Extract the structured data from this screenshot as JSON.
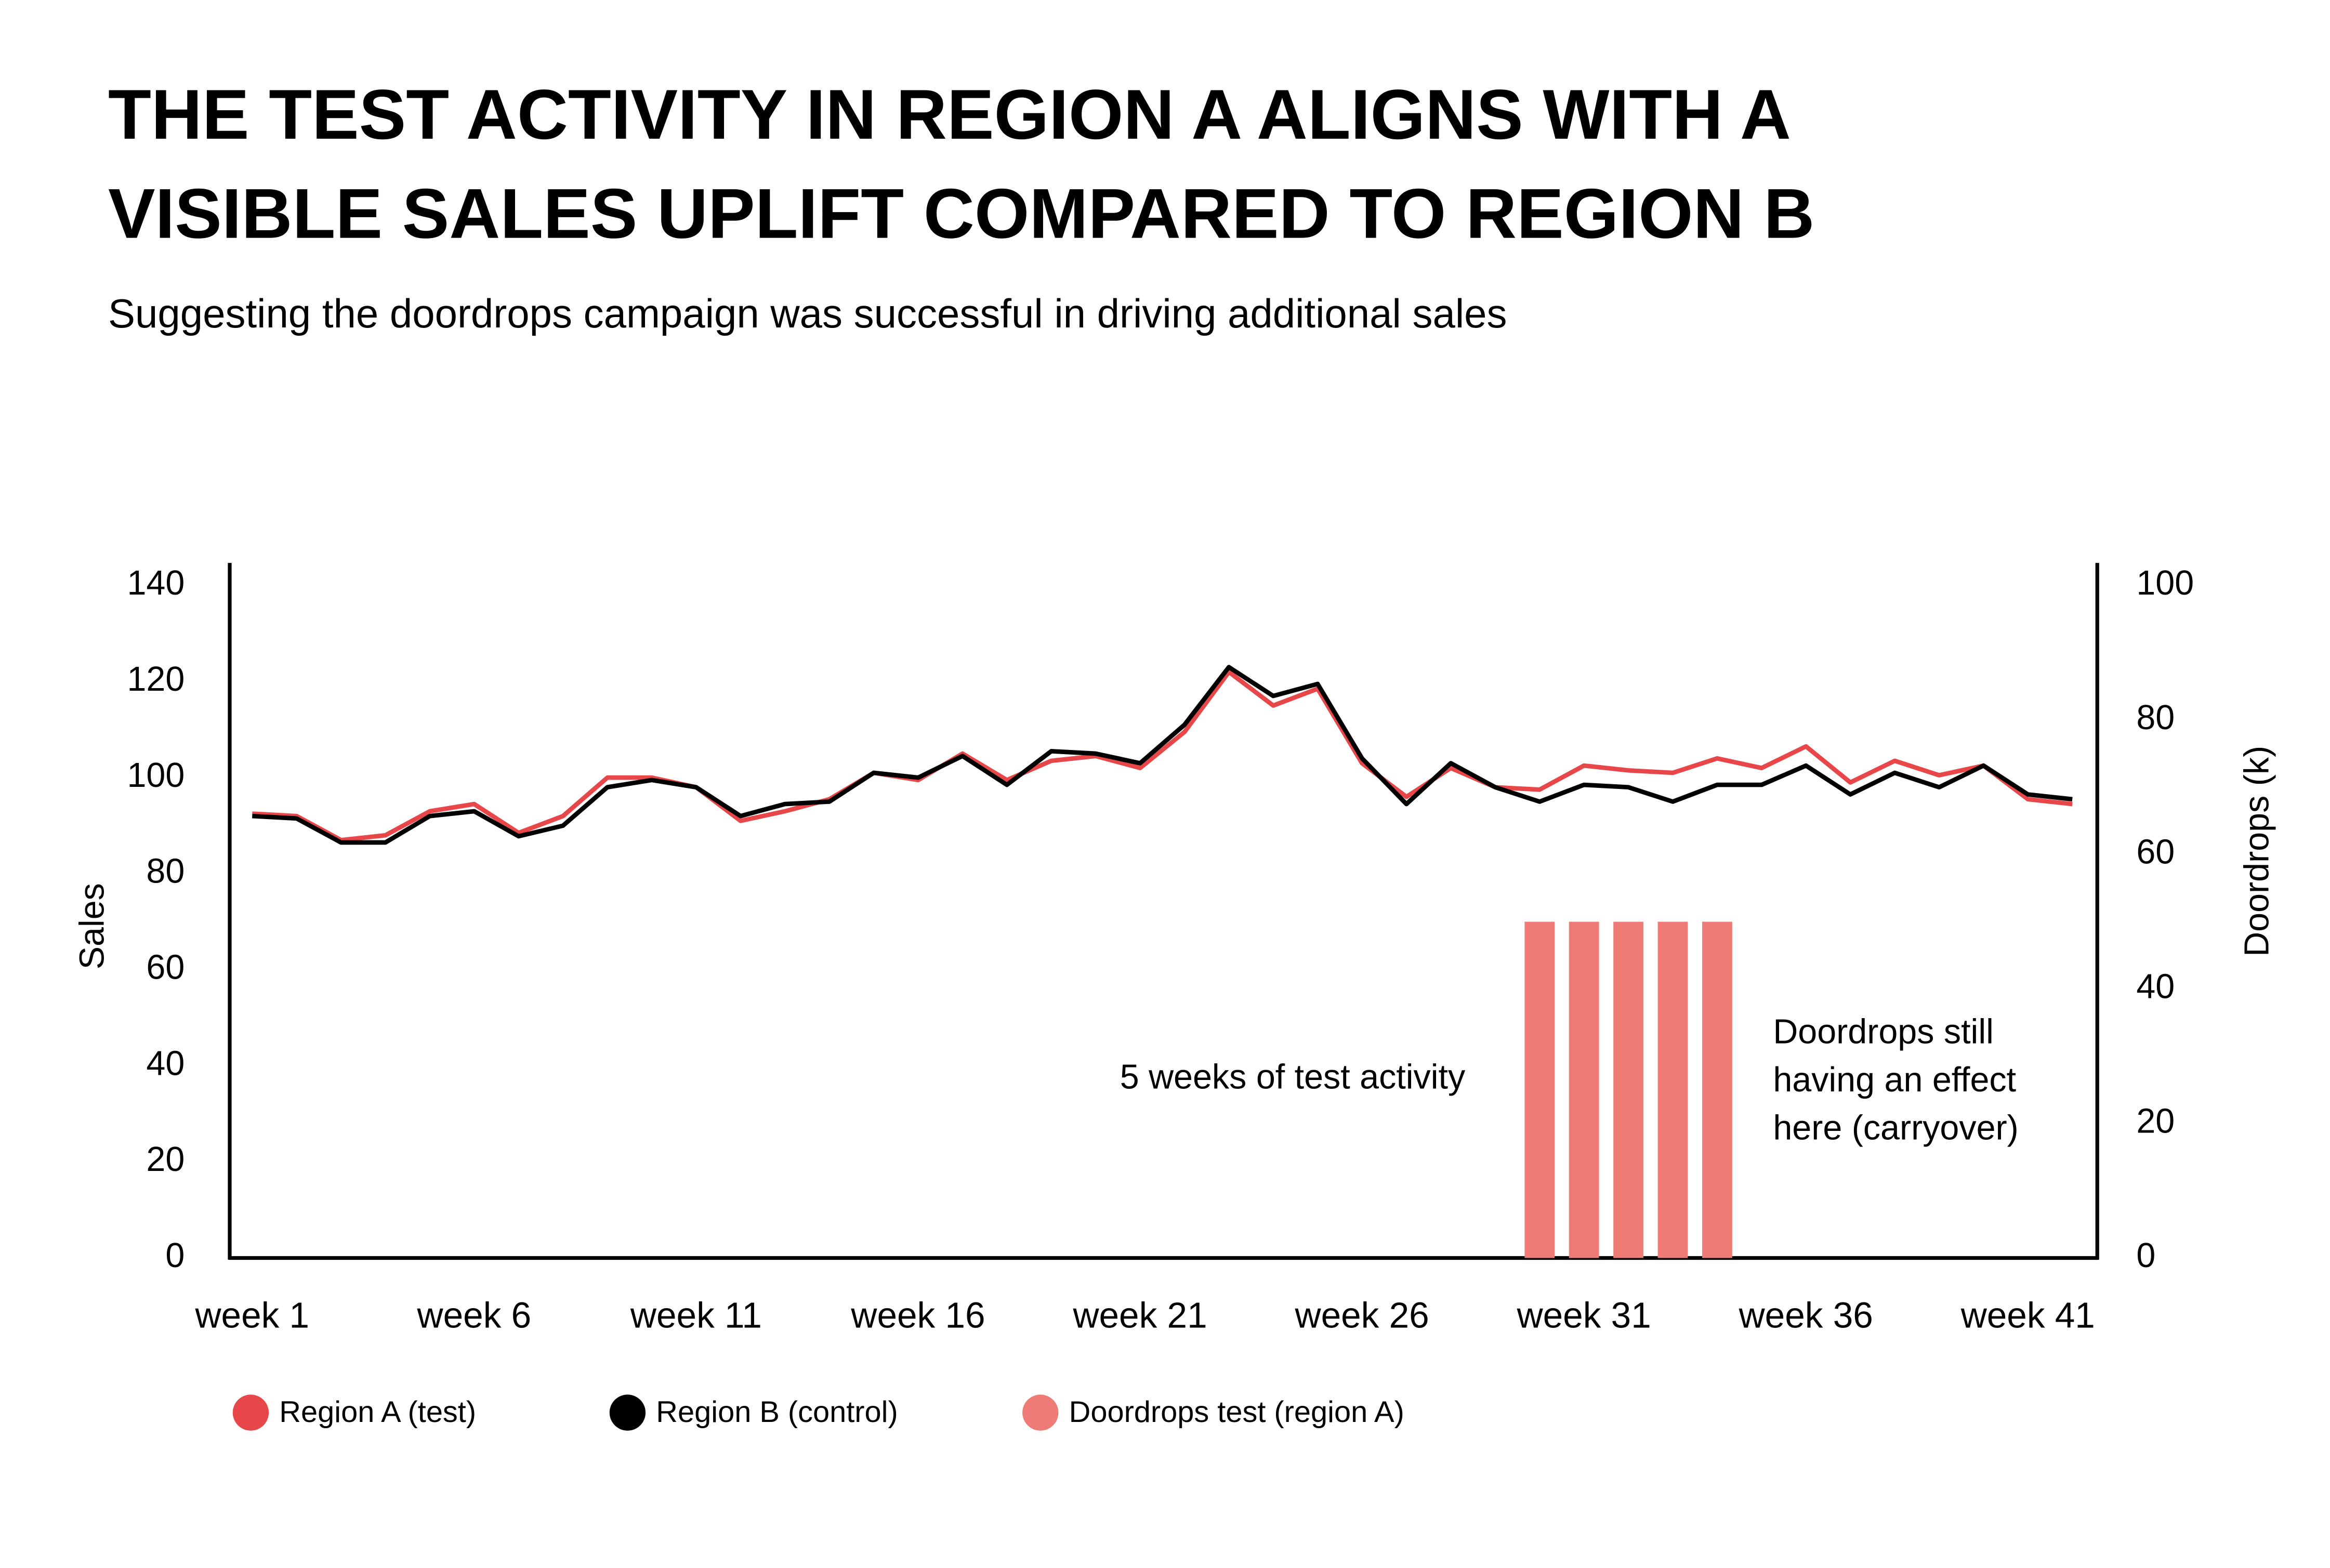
{
  "chart_data": {
    "type": "line",
    "title": [
      "THE TEST ACTIVITY IN REGION A ALIGNS WITH A",
      "VISIBLE SALES UPLIFT COMPARED TO REGION B"
    ],
    "subtitle": "Suggesting the doordrops campaign was successful in driving additional sales",
    "y_label": "Sales",
    "y2_label": "Doordrops (k)",
    "categories": [
      "week 1",
      null,
      null,
      null,
      null,
      "week 6",
      null,
      null,
      null,
      null,
      "week 11",
      null,
      null,
      null,
      null,
      "week 16",
      null,
      null,
      null,
      null,
      "week 21",
      null,
      null,
      null,
      null,
      "week 26",
      null,
      null,
      null,
      null,
      "week 31",
      null,
      null,
      null,
      null,
      "week 36",
      null,
      null,
      null,
      null,
      "week 41",
      null
    ],
    "ylim": [
      0,
      140
    ],
    "yticks": [
      0,
      20,
      40,
      60,
      80,
      100,
      120,
      140
    ],
    "y2lim": [
      0,
      100
    ],
    "y2ticks": [
      0,
      20,
      40,
      60,
      80,
      100
    ],
    "grid": false,
    "series": [
      {
        "name": "Region A (test)",
        "type": "line",
        "color": "#e8474a",
        "values": [
          92.5,
          92,
          87,
          88,
          93,
          94.5,
          88.5,
          92,
          100,
          100,
          98,
          91,
          93,
          95.5,
          101,
          99.5,
          105,
          99.5,
          103.5,
          104.5,
          102,
          109.5,
          122,
          115,
          118.5,
          103,
          96,
          102,
          98,
          97.5,
          102.5,
          101.5,
          101,
          104,
          102,
          106.5,
          99,
          103.5,
          100.5,
          102.5,
          95.5,
          94.5
        ]
      },
      {
        "name": "Region B (control)",
        "type": "line",
        "color": "#000000",
        "values": [
          92,
          91.5,
          86.5,
          86.5,
          92,
          93,
          87.8,
          90,
          98,
          99.5,
          98,
          92,
          94.5,
          95,
          101,
          100,
          104.5,
          98.5,
          105.5,
          105,
          103,
          111,
          123,
          117,
          119.5,
          104,
          94.5,
          103,
          98,
          95,
          98.5,
          98,
          95,
          98.5,
          98.5,
          102.5,
          96.5,
          101,
          98,
          102.5,
          96.5,
          95.5
        ]
      },
      {
        "name": "Doordrops test (region A)",
        "type": "bar",
        "axis": "y2",
        "color": "#ee7b76",
        "values": [
          null,
          null,
          null,
          null,
          null,
          null,
          null,
          null,
          null,
          null,
          null,
          null,
          null,
          null,
          null,
          null,
          null,
          null,
          null,
          null,
          null,
          null,
          null,
          null,
          null,
          null,
          null,
          null,
          null,
          50,
          50,
          50,
          50,
          50,
          null,
          null,
          null,
          null,
          null,
          null,
          null,
          null
        ]
      }
    ],
    "annotations": [
      {
        "lines": [
          "5 weeks of test activity"
        ]
      },
      {
        "lines": [
          "Doordrops still",
          "having an effect",
          "here (carryover)"
        ]
      }
    ]
  }
}
